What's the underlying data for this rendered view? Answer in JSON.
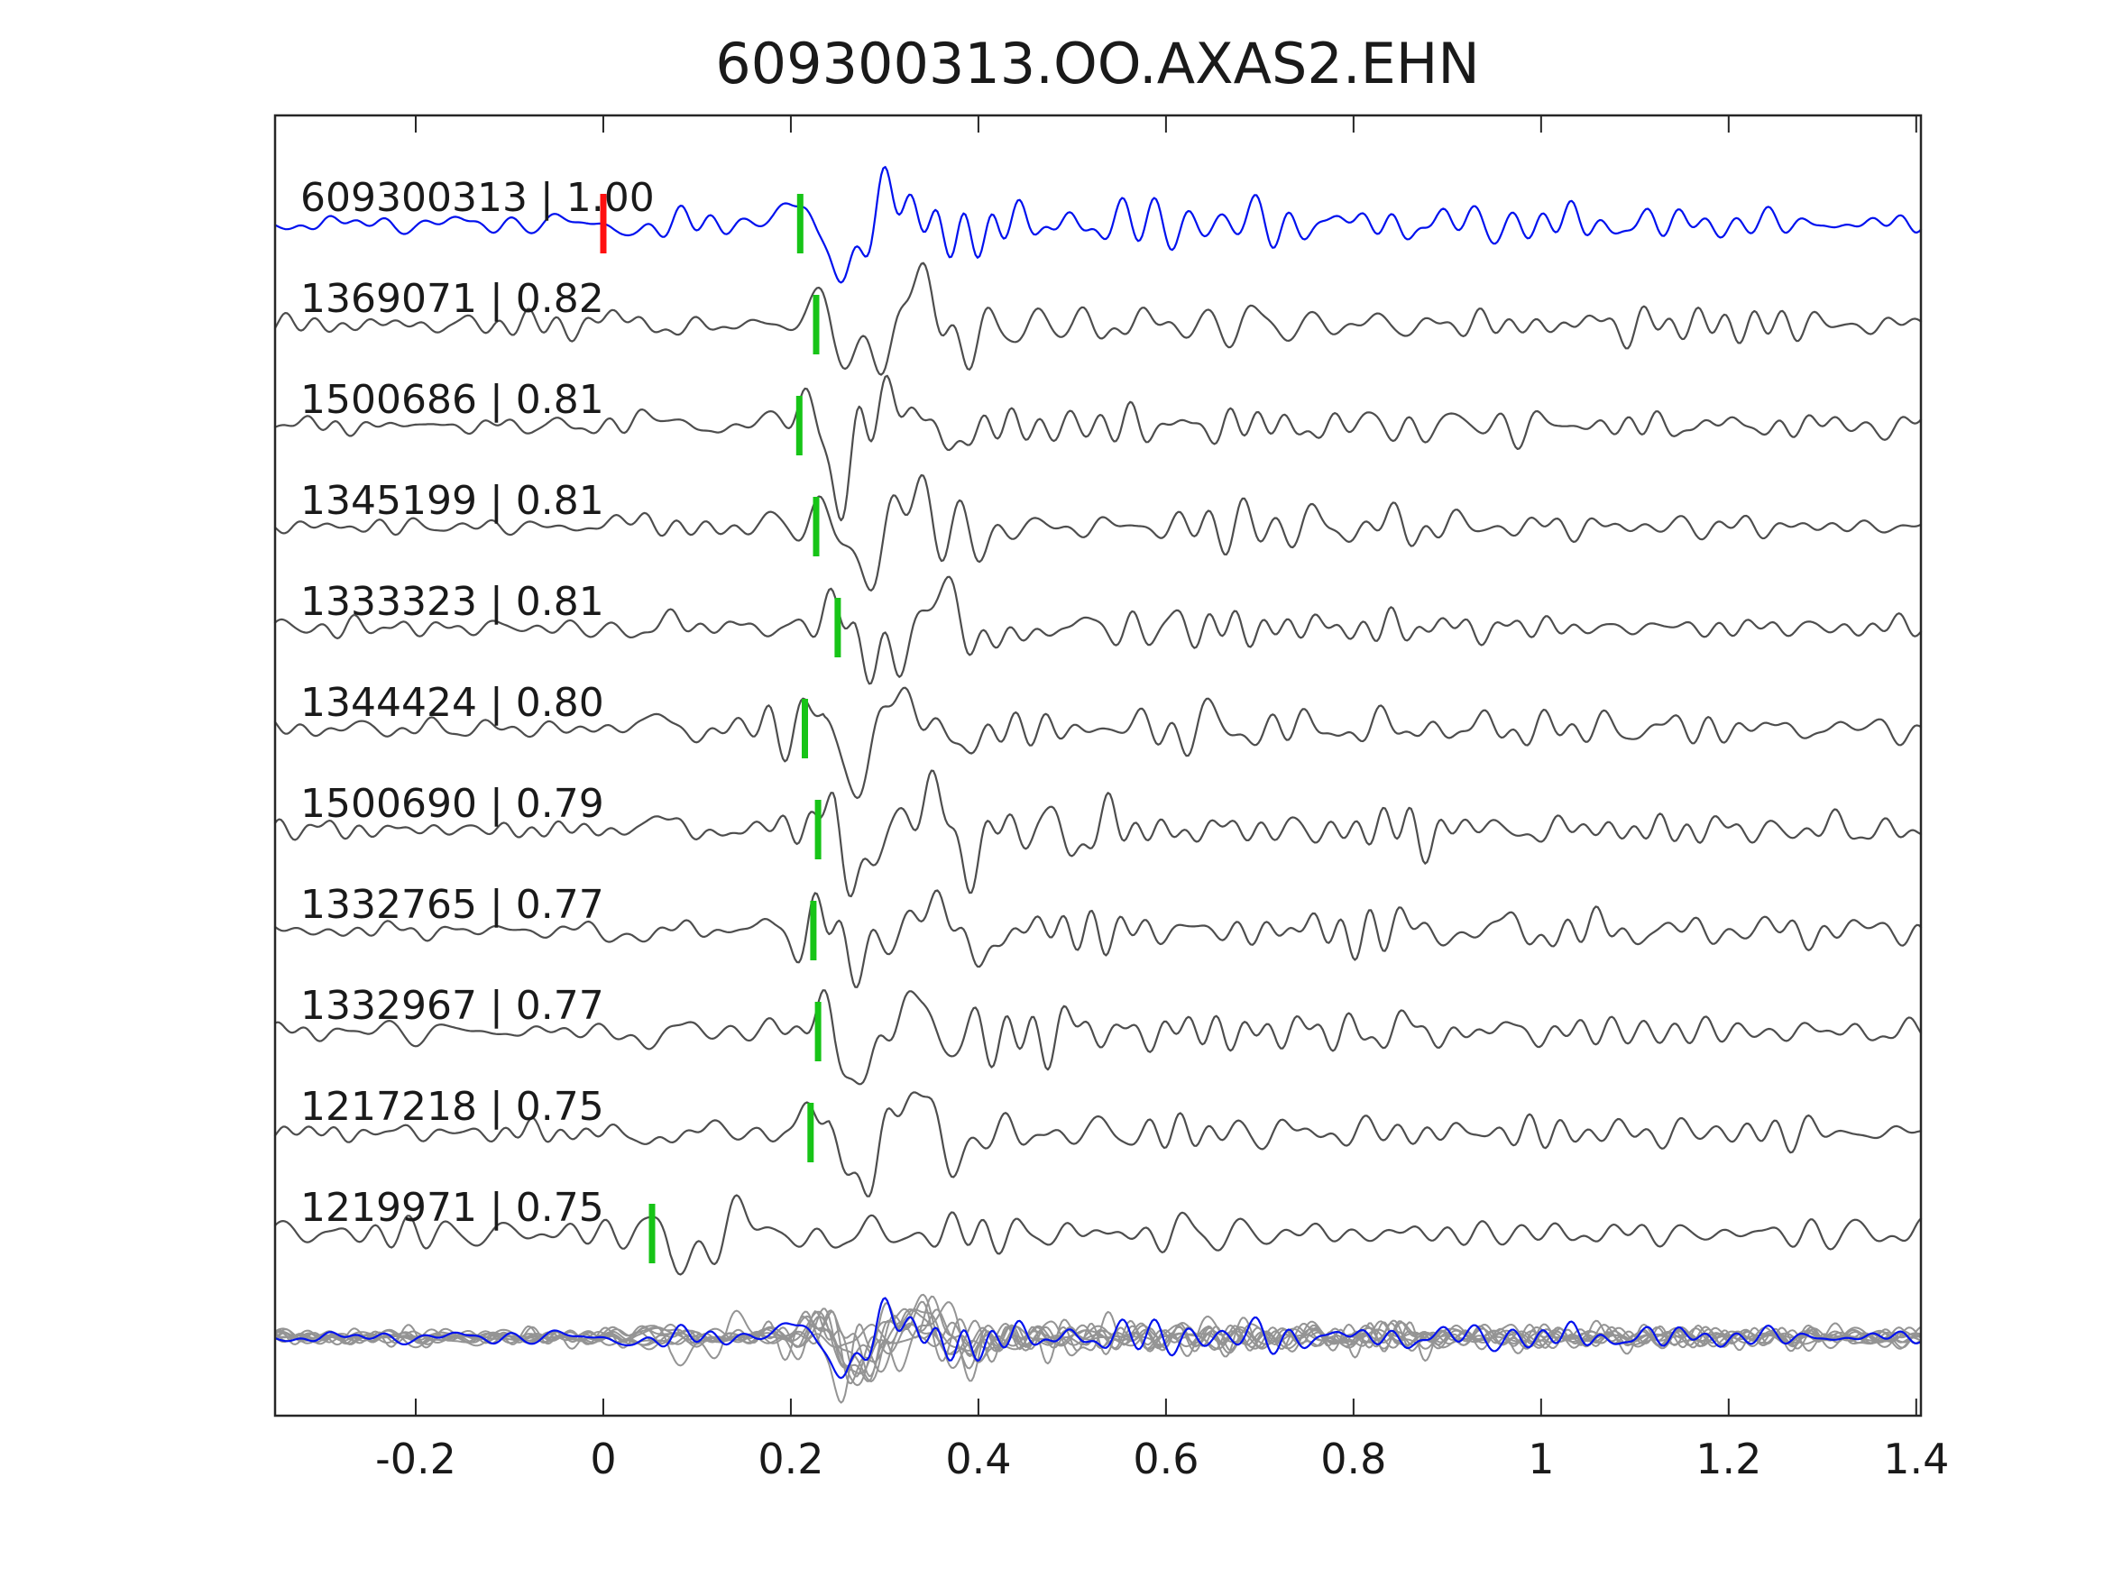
{
  "title": "609300313.OO.AXAS2.EHN",
  "colors": {
    "template_trace": "#0011ee",
    "detection_trace": "#4d4d4d",
    "overlay_trace": "#949494",
    "pick_marker_green": "#17c417",
    "pick_marker_red": "#ff1010",
    "axis_line": "#262626",
    "text": "#1a1a1a"
  },
  "chart_data": {
    "type": "line",
    "title": "609300313.OO.AXAS2.EHN",
    "x_range": [
      -0.35,
      1.405
    ],
    "x_ticks": [
      -0.2,
      0,
      0.2,
      0.4,
      0.6,
      0.8,
      1,
      1.2,
      1.4
    ],
    "x_tick_labels": [
      "-0.2",
      "0",
      "0.2",
      "0.4",
      "0.6",
      "0.8",
      "1",
      "1.2",
      "1.4"
    ],
    "grid": false,
    "legend": false,
    "description": "Template waveform (blue, top) compared with 10 detected event waveforms (gray), correlation coefficient shown per trace; green bars mark pick times, red bar marks template origin time; bottom row shows all traces superimposed.",
    "traces": [
      {
        "id": "609300313",
        "correlation": 1.0,
        "label": "609300313 | 1.00",
        "role": "template",
        "seed": 3,
        "event_time": 0.21,
        "event_scale": 1.0,
        "noise": 0.22,
        "picks": [
          {
            "time": 0.0,
            "color": "red"
          },
          {
            "time": 0.21,
            "color": "green"
          }
        ]
      },
      {
        "id": "1369071",
        "correlation": 0.82,
        "label": "1369071 | 0.82",
        "role": "detection",
        "seed": 7,
        "event_time": 0.227,
        "event_scale": 1.0,
        "noise": 0.22,
        "picks": [
          {
            "time": 0.227,
            "color": "green"
          }
        ]
      },
      {
        "id": "1500686",
        "correlation": 0.81,
        "label": "1500686 | 0.81",
        "role": "detection",
        "seed": 12,
        "event_time": 0.209,
        "event_scale": 1.0,
        "noise": 0.22,
        "picks": [
          {
            "time": 0.209,
            "color": "green"
          }
        ]
      },
      {
        "id": "1345199",
        "correlation": 0.81,
        "label": "1345199 | 0.81",
        "role": "detection",
        "seed": 19,
        "event_time": 0.227,
        "event_scale": 1.0,
        "noise": 0.22,
        "picks": [
          {
            "time": 0.227,
            "color": "green"
          }
        ]
      },
      {
        "id": "1333323",
        "correlation": 0.81,
        "label": "1333323 | 0.81",
        "role": "detection",
        "seed": 23,
        "event_time": 0.25,
        "event_scale": 1.0,
        "noise": 0.22,
        "picks": [
          {
            "time": 0.25,
            "color": "green"
          }
        ]
      },
      {
        "id": "1344424",
        "correlation": 0.8,
        "label": "1344424 | 0.80",
        "role": "detection",
        "seed": 31,
        "event_time": 0.215,
        "event_scale": 1.0,
        "noise": 0.22,
        "picks": [
          {
            "time": 0.215,
            "color": "green"
          }
        ]
      },
      {
        "id": "1500690",
        "correlation": 0.79,
        "label": "1500690 | 0.79",
        "role": "detection",
        "seed": 37,
        "event_time": 0.229,
        "event_scale": 1.0,
        "noise": 0.22,
        "picks": [
          {
            "time": 0.229,
            "color": "green"
          }
        ]
      },
      {
        "id": "1332765",
        "correlation": 0.77,
        "label": "1332765 | 0.77",
        "role": "detection",
        "seed": 41,
        "event_time": 0.224,
        "event_scale": 1.0,
        "noise": 0.22,
        "picks": [
          {
            "time": 0.224,
            "color": "green"
          }
        ]
      },
      {
        "id": "1332967",
        "correlation": 0.77,
        "label": "1332967 | 0.77",
        "role": "detection",
        "seed": 47,
        "event_time": 0.229,
        "event_scale": 1.0,
        "noise": 0.22,
        "picks": [
          {
            "time": 0.229,
            "color": "green"
          }
        ]
      },
      {
        "id": "1217218",
        "correlation": 0.75,
        "label": "1217218 | 0.75",
        "role": "detection",
        "seed": 53,
        "event_time": 0.221,
        "event_scale": 1.0,
        "noise": 0.22,
        "picks": [
          {
            "time": 0.221,
            "color": "green"
          }
        ]
      },
      {
        "id": "1219971",
        "correlation": 0.75,
        "label": "1219971 | 0.75",
        "role": "detection",
        "seed": 59,
        "event_time": 0.052,
        "event_scale": 0.55,
        "noise": 0.3,
        "picks": [
          {
            "time": 0.052,
            "color": "green"
          }
        ]
      }
    ],
    "overlay": {
      "includes_all_traces": true,
      "template_on_top": true
    }
  }
}
